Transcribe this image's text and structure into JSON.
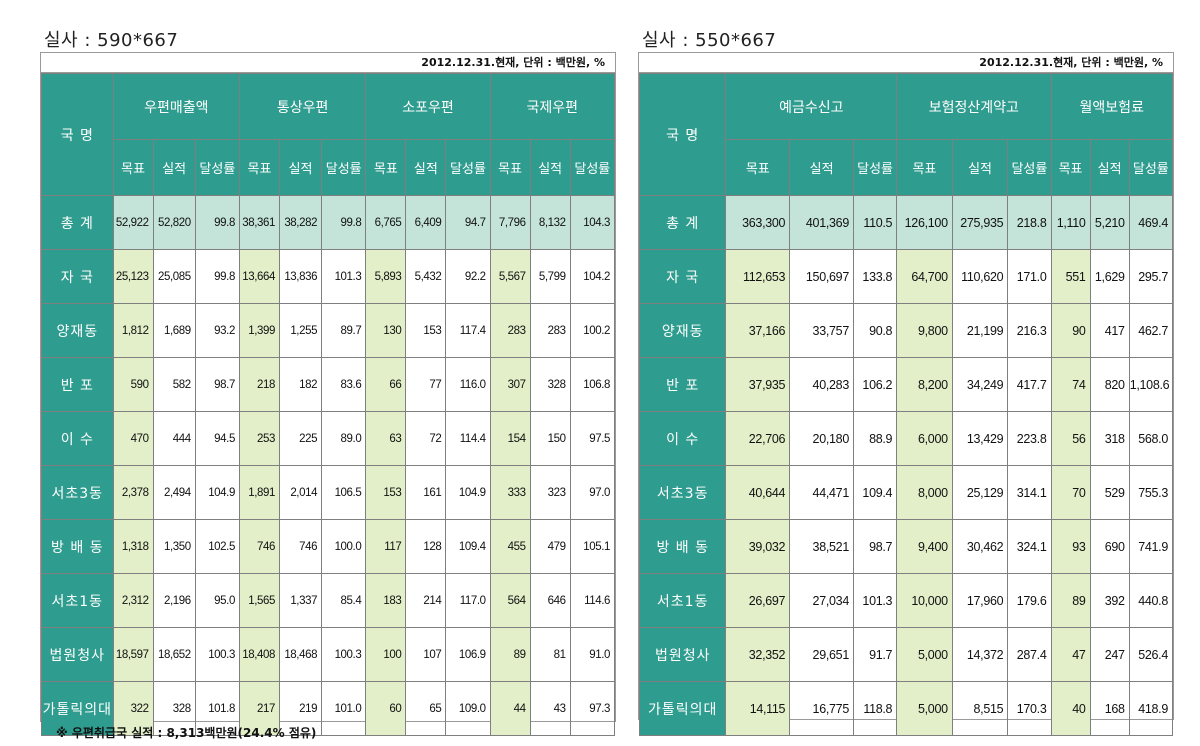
{
  "left": {
    "caption": "실사 : 590*667",
    "unit_note": "2012.12.31.현재, 단위 : 백만원, %",
    "row_header": "국  명",
    "groups": [
      "우편매출액",
      "통상우편",
      "소포우편",
      "국제우편"
    ],
    "sub_headers": [
      "목표",
      "실적",
      "달성률"
    ],
    "rows": [
      {
        "name": "총  계",
        "values": [
          "52,922",
          "52,820",
          "99.8",
          "38,361",
          "38,282",
          "99.8",
          "6,765",
          "6,409",
          "94.7",
          "7,796",
          "8,132",
          "104.3"
        ]
      },
      {
        "name": "자  국",
        "values": [
          "25,123",
          "25,085",
          "99.8",
          "13,664",
          "13,836",
          "101.3",
          "5,893",
          "5,432",
          "92.2",
          "5,567",
          "5,799",
          "104.2"
        ]
      },
      {
        "name": "양재동",
        "values": [
          "1,812",
          "1,689",
          "93.2",
          "1,399",
          "1,255",
          "89.7",
          "130",
          "153",
          "117.4",
          "283",
          "283",
          "100.2"
        ]
      },
      {
        "name": "반  포",
        "values": [
          "590",
          "582",
          "98.7",
          "218",
          "182",
          "83.6",
          "66",
          "77",
          "116.0",
          "307",
          "328",
          "106.8"
        ]
      },
      {
        "name": "이  수",
        "values": [
          "470",
          "444",
          "94.5",
          "253",
          "225",
          "89.0",
          "63",
          "72",
          "114.4",
          "154",
          "150",
          "97.5"
        ]
      },
      {
        "name": "서초3동",
        "values": [
          "2,378",
          "2,494",
          "104.9",
          "1,891",
          "2,014",
          "106.5",
          "153",
          "161",
          "104.9",
          "333",
          "323",
          "97.0"
        ]
      },
      {
        "name": "방 배 동",
        "values": [
          "1,318",
          "1,350",
          "102.5",
          "746",
          "746",
          "100.0",
          "117",
          "128",
          "109.4",
          "455",
          "479",
          "105.1"
        ]
      },
      {
        "name": "서초1동",
        "values": [
          "2,312",
          "2,196",
          "95.0",
          "1,565",
          "1,337",
          "85.4",
          "183",
          "214",
          "117.0",
          "564",
          "646",
          "114.6"
        ]
      },
      {
        "name": "법원청사",
        "values": [
          "18,597",
          "18,652",
          "100.3",
          "18,408",
          "18,468",
          "100.3",
          "100",
          "107",
          "106.9",
          "89",
          "81",
          "91.0"
        ]
      },
      {
        "name": "가톨릭의대",
        "values": [
          "322",
          "328",
          "101.8",
          "217",
          "219",
          "101.0",
          "60",
          "65",
          "109.0",
          "44",
          "43",
          "97.3"
        ]
      }
    ],
    "footnote": "※  우편취급국 실적 : 8,313백만원(24.4% 점유)"
  },
  "right": {
    "caption": "실사 : 550*667",
    "unit_note": "2012.12.31.현재, 단위 : 백만원, %",
    "row_header": "국  명",
    "groups": [
      "예금수신고",
      "보험정산계약고",
      "월액보험료"
    ],
    "sub_headers": [
      "목표",
      "실적",
      "달성률"
    ],
    "rows": [
      {
        "name": "총  계",
        "values": [
          "363,300",
          "401,369",
          "110.5",
          "126,100",
          "275,935",
          "218.8",
          "1,110",
          "5,210",
          "469.4"
        ]
      },
      {
        "name": "자  국",
        "values": [
          "112,653",
          "150,697",
          "133.8",
          "64,700",
          "110,620",
          "171.0",
          "551",
          "1,629",
          "295.7"
        ]
      },
      {
        "name": "양재동",
        "values": [
          "37,166",
          "33,757",
          "90.8",
          "9,800",
          "21,199",
          "216.3",
          "90",
          "417",
          "462.7"
        ]
      },
      {
        "name": "반  포",
        "values": [
          "37,935",
          "40,283",
          "106.2",
          "8,200",
          "34,249",
          "417.7",
          "74",
          "820",
          "1,108.6"
        ]
      },
      {
        "name": "이  수",
        "values": [
          "22,706",
          "20,180",
          "88.9",
          "6,000",
          "13,429",
          "223.8",
          "56",
          "318",
          "568.0"
        ]
      },
      {
        "name": "서초3동",
        "values": [
          "40,644",
          "44,471",
          "109.4",
          "8,000",
          "25,129",
          "314.1",
          "70",
          "529",
          "755.3"
        ]
      },
      {
        "name": "방 배 동",
        "values": [
          "39,032",
          "38,521",
          "98.7",
          "9,400",
          "30,462",
          "324.1",
          "93",
          "690",
          "741.9"
        ]
      },
      {
        "name": "서초1동",
        "values": [
          "26,697",
          "27,034",
          "101.3",
          "10,000",
          "17,960",
          "179.6",
          "89",
          "392",
          "440.8"
        ]
      },
      {
        "name": "법원청사",
        "values": [
          "32,352",
          "29,651",
          "91.7",
          "5,000",
          "14,372",
          "287.4",
          "47",
          "247",
          "526.4"
        ]
      },
      {
        "name": "가톨릭의대",
        "values": [
          "14,115",
          "16,775",
          "118.8",
          "5,000",
          "8,515",
          "170.3",
          "40",
          "168",
          "418.9"
        ]
      }
    ]
  }
}
